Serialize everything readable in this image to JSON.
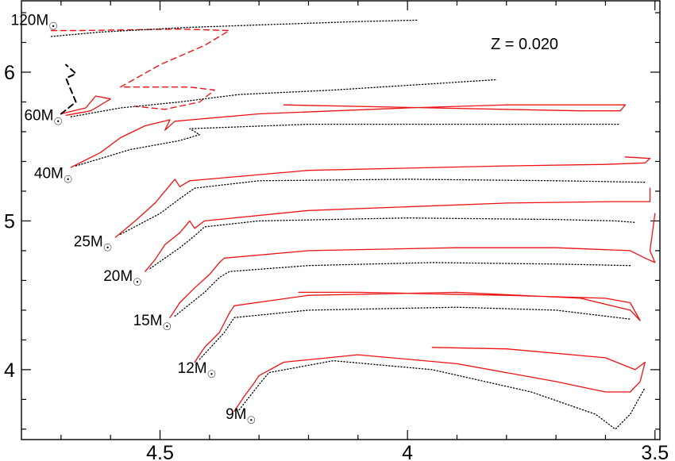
{
  "chart_data": {
    "type": "line",
    "title": "",
    "annotation": "Z = 0.020",
    "xlabel": "",
    "ylabel": "",
    "x_axis": {
      "reversed": true,
      "xlim": [
        4.78,
        3.49
      ],
      "ticks": [
        4.5,
        4.0,
        3.5
      ],
      "tick_labels": [
        "4.5",
        "4",
        "3.5"
      ]
    },
    "y_axis": {
      "ylim": [
        3.53,
        6.48
      ],
      "ticks": [
        4,
        5,
        6
      ],
      "tick_labels": [
        "4",
        "5",
        "6"
      ]
    },
    "grid": false,
    "colors": {
      "model_a": "#ee1111",
      "model_b": "#000000",
      "dashed_segments": "#ee1111"
    },
    "line_styles": {
      "model_a": "solid",
      "model_b": "dotted"
    },
    "mass_labels": [
      {
        "mass": "120",
        "unit": "M☉",
        "x": 4.7,
        "y": 6.35
      },
      {
        "mass": "60",
        "unit": "M☉",
        "x": 4.69,
        "y": 5.71
      },
      {
        "mass": "40",
        "unit": "M☉",
        "x": 4.67,
        "y": 5.32
      },
      {
        "mass": "25",
        "unit": "M☉",
        "x": 4.59,
        "y": 4.86
      },
      {
        "mass": "20",
        "unit": "M☉",
        "x": 4.53,
        "y": 4.63
      },
      {
        "mass": "15",
        "unit": "M☉",
        "x": 4.47,
        "y": 4.33
      },
      {
        "mass": "12",
        "unit": "M☉",
        "x": 4.38,
        "y": 4.01
      },
      {
        "mass": "9",
        "unit": "M☉",
        "x": 4.3,
        "y": 3.7
      }
    ],
    "series": [
      {
        "mass": 120,
        "style": "dashed",
        "color": "#ee1111",
        "points": [
          [
            4.72,
            6.28
          ],
          [
            4.66,
            6.28
          ],
          [
            4.46,
            6.29
          ],
          [
            4.36,
            6.28
          ],
          [
            4.41,
            6.18
          ],
          [
            4.5,
            6.05
          ],
          [
            4.58,
            5.9
          ],
          [
            4.44,
            5.9
          ],
          [
            4.39,
            5.88
          ],
          [
            4.42,
            5.8
          ],
          [
            4.49,
            5.75
          ],
          [
            4.55,
            5.77
          ]
        ]
      },
      {
        "mass": 120,
        "style": "dotted",
        "color": "#000000",
        "points": [
          [
            4.72,
            6.24
          ],
          [
            4.62,
            6.27
          ],
          [
            4.45,
            6.3
          ],
          [
            4.28,
            6.32
          ],
          [
            4.1,
            6.34
          ],
          [
            3.98,
            6.35
          ]
        ]
      },
      {
        "mass": 60,
        "style": "solid",
        "color": "#ee1111",
        "points": [
          [
            4.7,
            5.72
          ],
          [
            4.65,
            5.76
          ],
          [
            4.63,
            5.84
          ],
          [
            4.6,
            5.82
          ],
          [
            4.64,
            5.74
          ],
          [
            4.69,
            5.71
          ]
        ]
      },
      {
        "mass": 60,
        "style": "dashed",
        "color": "#000000",
        "points": [
          [
            4.7,
            5.72
          ],
          [
            4.67,
            5.8
          ],
          [
            4.68,
            5.88
          ],
          [
            4.69,
            5.96
          ],
          [
            4.67,
            5.99
          ],
          [
            4.69,
            6.05
          ]
        ]
      },
      {
        "mass": 60,
        "style": "dotted",
        "color": "#000000",
        "points": [
          [
            4.68,
            5.7
          ],
          [
            4.58,
            5.76
          ],
          [
            4.46,
            5.8
          ],
          [
            4.34,
            5.85
          ],
          [
            4.15,
            5.88
          ],
          [
            3.96,
            5.92
          ],
          [
            3.82,
            5.95
          ]
        ]
      },
      {
        "mass": 40,
        "style": "solid",
        "color": "#ee1111",
        "points": [
          [
            4.68,
            5.36
          ],
          [
            4.62,
            5.46
          ],
          [
            4.58,
            5.56
          ],
          [
            4.53,
            5.64
          ],
          [
            4.48,
            5.68
          ],
          [
            4.49,
            5.61
          ],
          [
            4.47,
            5.67
          ],
          [
            4.3,
            5.72
          ],
          [
            4.0,
            5.76
          ],
          [
            3.8,
            5.78
          ],
          [
            3.62,
            5.78
          ],
          [
            3.56,
            5.78
          ],
          [
            3.57,
            5.74
          ],
          [
            3.65,
            5.74
          ],
          [
            3.95,
            5.76
          ],
          [
            4.25,
            5.78
          ]
        ]
      },
      {
        "mass": 40,
        "style": "dotted",
        "color": "#000000",
        "points": [
          [
            4.67,
            5.37
          ],
          [
            4.56,
            5.48
          ],
          [
            4.46,
            5.54
          ],
          [
            4.42,
            5.58
          ],
          [
            4.44,
            5.62
          ],
          [
            4.2,
            5.65
          ],
          [
            3.9,
            5.65
          ],
          [
            3.7,
            5.65
          ],
          [
            3.57,
            5.65
          ]
        ]
      },
      {
        "mass": 25,
        "style": "solid",
        "color": "#ee1111",
        "points": [
          [
            4.59,
            4.89
          ],
          [
            4.55,
            5.0
          ],
          [
            4.51,
            5.12
          ],
          [
            4.49,
            5.2
          ],
          [
            4.47,
            5.28
          ],
          [
            4.46,
            5.23
          ],
          [
            4.44,
            5.27
          ],
          [
            4.2,
            5.34
          ],
          [
            3.8,
            5.37
          ],
          [
            3.6,
            5.38
          ],
          [
            3.52,
            5.39
          ],
          [
            3.51,
            5.42
          ],
          [
            3.56,
            5.43
          ]
        ]
      },
      {
        "mass": 25,
        "style": "dotted",
        "color": "#000000",
        "points": [
          [
            4.58,
            4.91
          ],
          [
            4.5,
            5.05
          ],
          [
            4.46,
            5.15
          ],
          [
            4.43,
            5.22
          ],
          [
            4.3,
            5.27
          ],
          [
            4.0,
            5.28
          ],
          [
            3.7,
            5.27
          ],
          [
            3.52,
            5.26
          ]
        ]
      },
      {
        "mass": 20,
        "style": "solid",
        "color": "#ee1111",
        "points": [
          [
            4.53,
            4.66
          ],
          [
            4.51,
            4.74
          ],
          [
            4.49,
            4.84
          ],
          [
            4.46,
            4.92
          ],
          [
            4.44,
            5.0
          ],
          [
            4.43,
            4.95
          ],
          [
            4.41,
            5.0
          ],
          [
            4.2,
            5.07
          ],
          [
            3.8,
            5.12
          ],
          [
            3.58,
            5.13
          ],
          [
            3.51,
            5.13
          ],
          [
            3.51,
            5.22
          ]
        ]
      },
      {
        "mass": 20,
        "style": "dotted",
        "color": "#000000",
        "points": [
          [
            4.52,
            4.68
          ],
          [
            4.46,
            4.82
          ],
          [
            4.43,
            4.9
          ],
          [
            4.41,
            4.96
          ],
          [
            4.3,
            5.0
          ],
          [
            4.0,
            5.02
          ],
          [
            3.7,
            5.01
          ],
          [
            3.58,
            5.0
          ],
          [
            3.54,
            4.99
          ]
        ]
      },
      {
        "mass": 15,
        "style": "solid",
        "color": "#ee1111",
        "points": [
          [
            4.48,
            4.35
          ],
          [
            4.46,
            4.45
          ],
          [
            4.43,
            4.55
          ],
          [
            4.4,
            4.64
          ],
          [
            4.38,
            4.72
          ],
          [
            4.37,
            4.75
          ],
          [
            4.2,
            4.8
          ],
          [
            3.9,
            4.82
          ],
          [
            3.7,
            4.82
          ],
          [
            3.55,
            4.8
          ],
          [
            3.52,
            4.75
          ],
          [
            3.5,
            4.72
          ],
          [
            3.51,
            4.8
          ],
          [
            3.5,
            5.05
          ]
        ]
      },
      {
        "mass": 15,
        "style": "dotted",
        "color": "#000000",
        "points": [
          [
            4.47,
            4.36
          ],
          [
            4.41,
            4.52
          ],
          [
            4.38,
            4.62
          ],
          [
            4.36,
            4.66
          ],
          [
            4.2,
            4.7
          ],
          [
            3.95,
            4.72
          ],
          [
            3.7,
            4.71
          ],
          [
            3.55,
            4.7
          ]
        ]
      },
      {
        "mass": 12,
        "style": "solid",
        "color": "#ee1111",
        "points": [
          [
            4.43,
            4.05
          ],
          [
            4.41,
            4.15
          ],
          [
            4.38,
            4.25
          ],
          [
            4.36,
            4.38
          ],
          [
            4.35,
            4.43
          ],
          [
            4.2,
            4.5
          ],
          [
            3.9,
            4.52
          ],
          [
            3.65,
            4.48
          ],
          [
            3.55,
            4.4
          ],
          [
            3.53,
            4.33
          ],
          [
            3.55,
            4.45
          ],
          [
            3.6,
            4.48
          ],
          [
            3.8,
            4.5
          ],
          [
            4.1,
            4.52
          ],
          [
            4.22,
            4.52
          ]
        ]
      },
      {
        "mass": 12,
        "style": "dotted",
        "color": "#000000",
        "points": [
          [
            4.42,
            4.07
          ],
          [
            4.37,
            4.25
          ],
          [
            4.35,
            4.35
          ],
          [
            4.2,
            4.4
          ],
          [
            3.9,
            4.42
          ],
          [
            3.7,
            4.4
          ],
          [
            3.55,
            4.34
          ]
        ]
      },
      {
        "mass": 9,
        "style": "solid",
        "color": "#ee1111",
        "points": [
          [
            4.35,
            3.72
          ],
          [
            4.33,
            3.82
          ],
          [
            4.31,
            3.91
          ],
          [
            4.3,
            3.96
          ],
          [
            4.25,
            4.05
          ],
          [
            4.1,
            4.1
          ],
          [
            3.9,
            4.04
          ],
          [
            3.7,
            3.92
          ],
          [
            3.6,
            3.85
          ],
          [
            3.55,
            3.85
          ],
          [
            3.53,
            3.92
          ],
          [
            3.52,
            4.05
          ],
          [
            3.54,
            4.0
          ],
          [
            3.6,
            4.08
          ],
          [
            3.8,
            4.14
          ],
          [
            3.95,
            4.15
          ]
        ]
      },
      {
        "mass": 9,
        "style": "dotted",
        "color": "#000000",
        "points": [
          [
            4.34,
            3.73
          ],
          [
            4.3,
            3.9
          ],
          [
            4.28,
            3.98
          ],
          [
            4.15,
            4.06
          ],
          [
            3.95,
            4.0
          ],
          [
            3.75,
            3.85
          ],
          [
            3.62,
            3.7
          ],
          [
            3.58,
            3.6
          ],
          [
            3.55,
            3.7
          ],
          [
            3.52,
            3.88
          ]
        ]
      }
    ]
  }
}
